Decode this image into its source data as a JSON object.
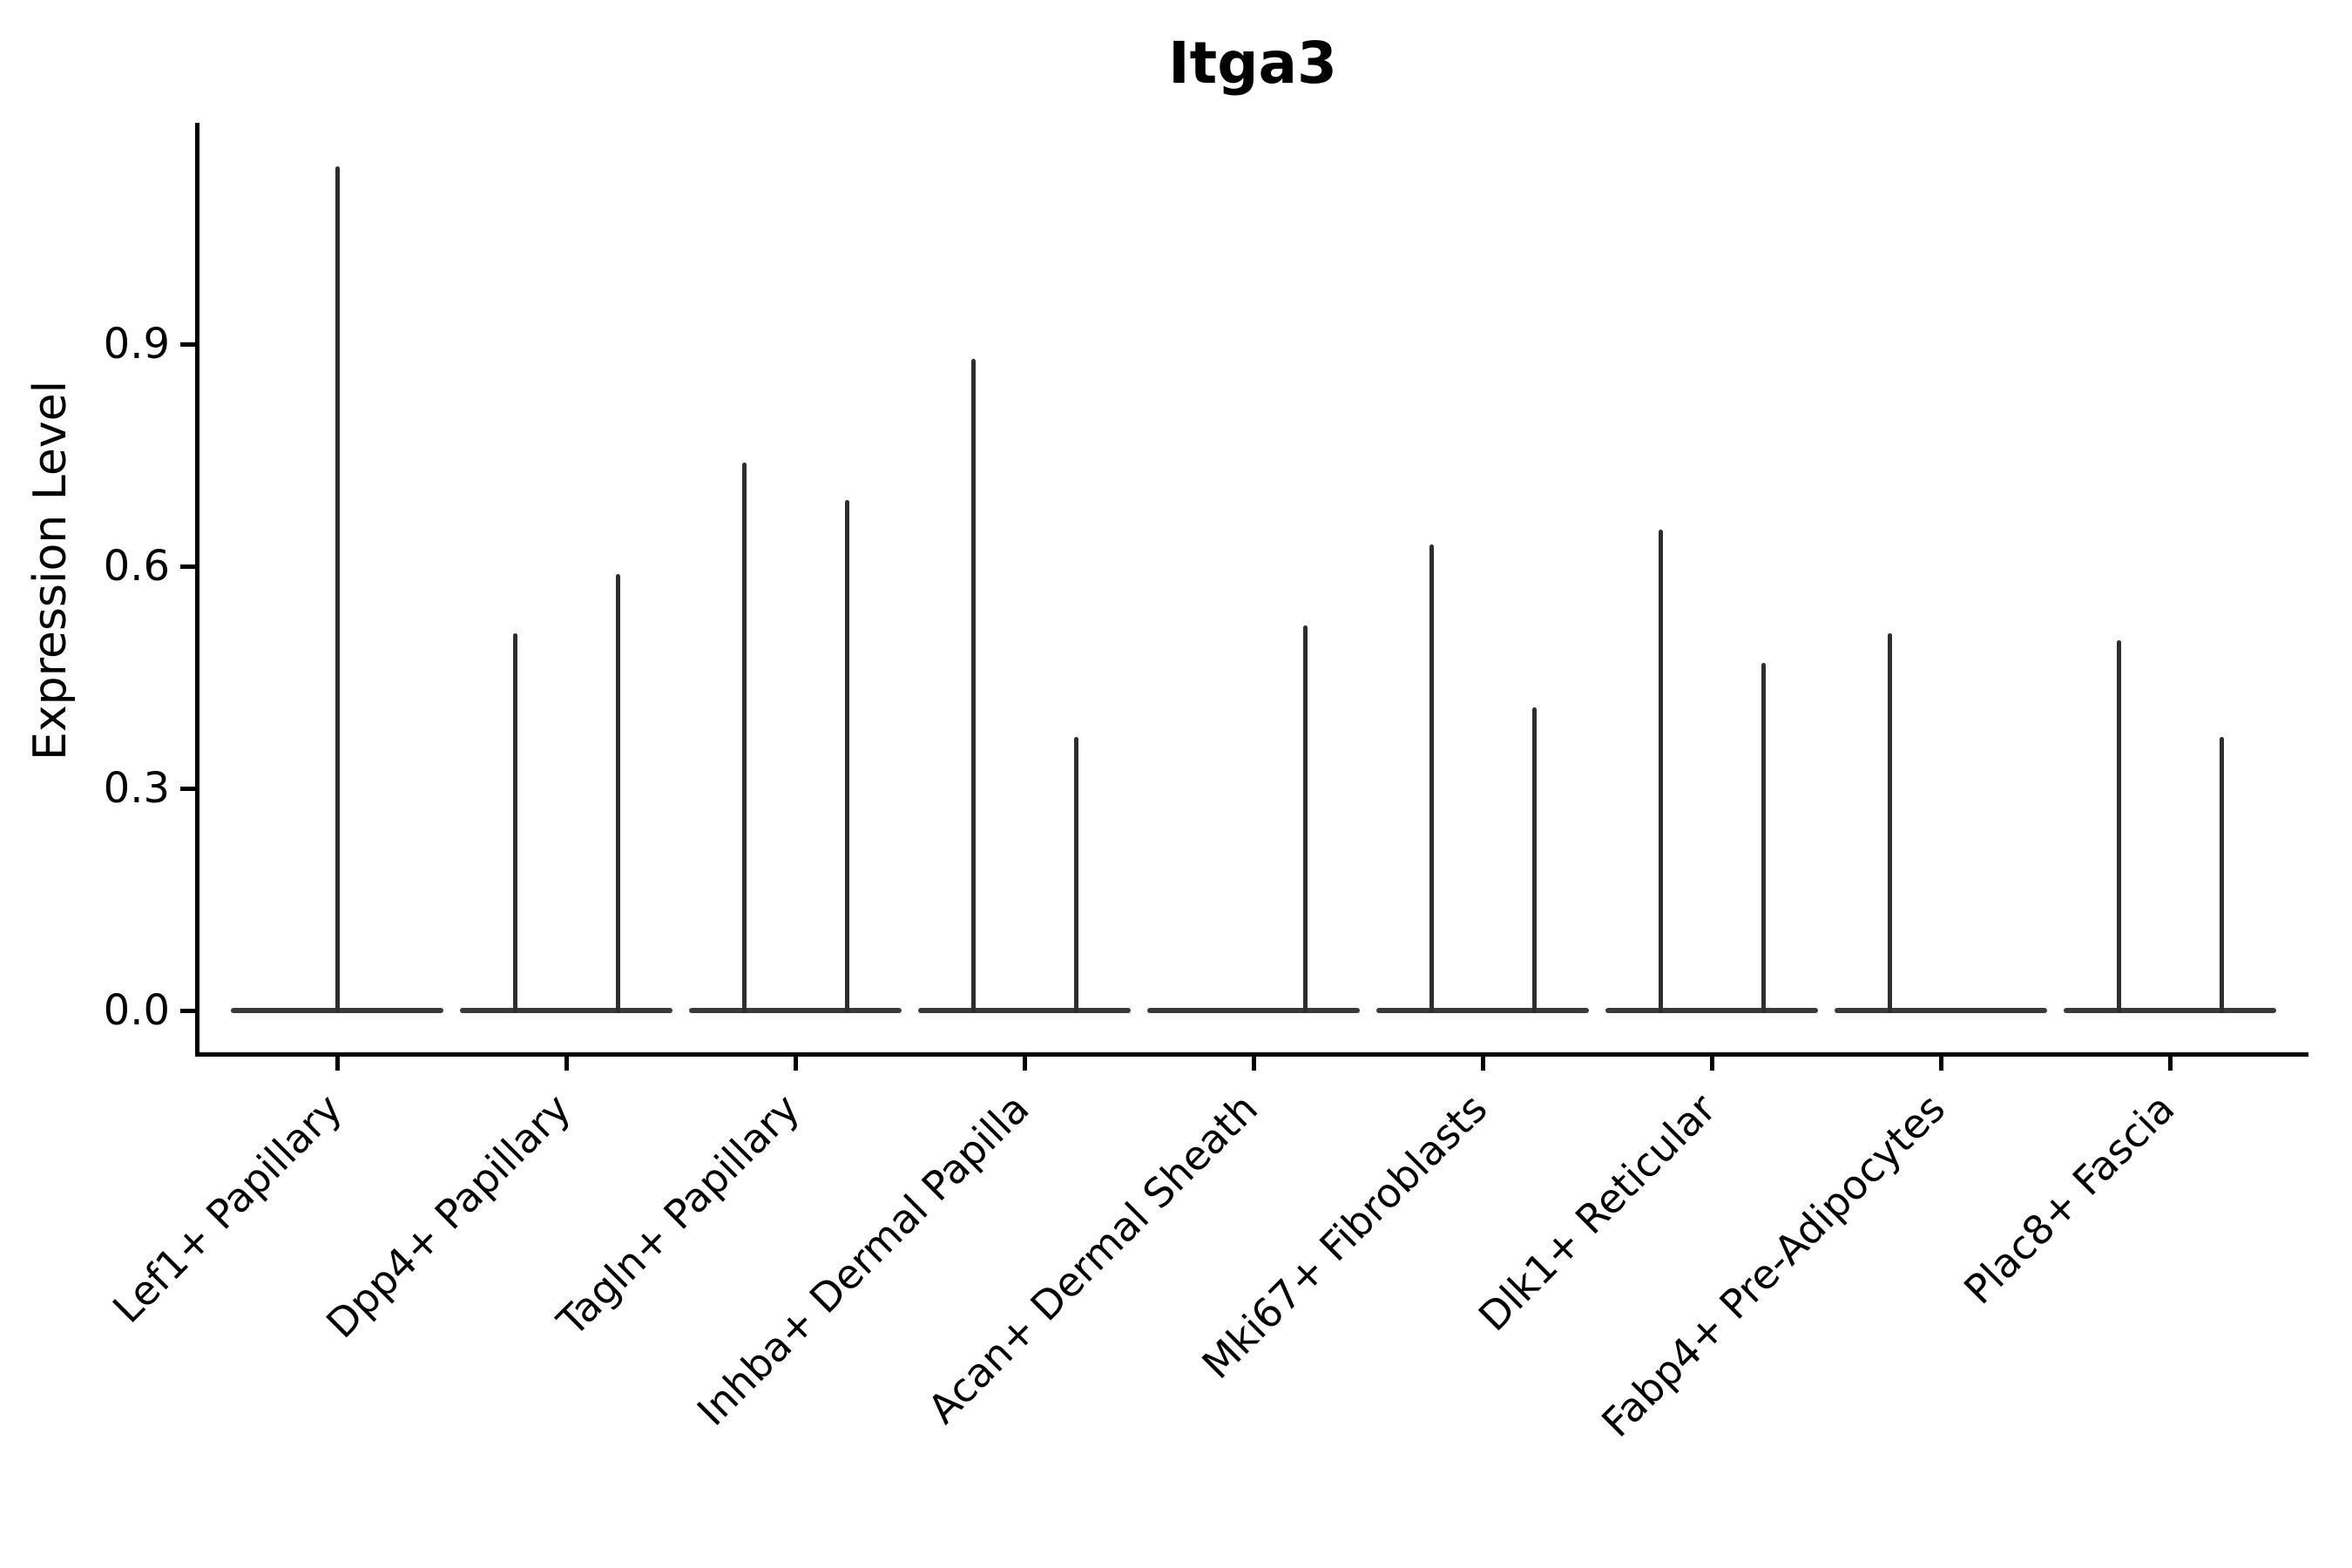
{
  "chart_data": {
    "type": "violin",
    "title": "Itga3",
    "xlabel": "",
    "ylabel": "Expression Level",
    "ylim": [
      -0.06,
      1.2
    ],
    "yticks": [
      0.0,
      0.3,
      0.6,
      0.9
    ],
    "ytick_labels": [
      "0.0",
      "0.3",
      "0.6",
      "0.9"
    ],
    "grid": false,
    "legend": "none",
    "categories": [
      "Lef1+ Papillary",
      "Dpp4+ Papillary",
      "Tagln+ Papillary",
      "Inhba+ Dermal Papilla",
      "Acan+ Dermal Sheath",
      "Mki67+ Fibroblasts",
      "Dlk1+ Reticular",
      "Fabp4+ Pre-Adipocytes",
      "Plac8+ Fascia"
    ],
    "baseline_value": 0.0,
    "violins": [
      {
        "category": "Lef1+ Papillary",
        "spikes": [
          {
            "position": "center",
            "max": 1.14
          }
        ]
      },
      {
        "category": "Dpp4+ Papillary",
        "spikes": [
          {
            "position": "left",
            "max": 0.51
          },
          {
            "position": "right",
            "max": 0.59
          }
        ]
      },
      {
        "category": "Tagln+ Papillary",
        "spikes": [
          {
            "position": "left",
            "max": 0.74
          },
          {
            "position": "right",
            "max": 0.69
          }
        ]
      },
      {
        "category": "Inhba+ Dermal Papilla",
        "spikes": [
          {
            "position": "left",
            "max": 0.88
          },
          {
            "position": "right",
            "max": 0.37
          }
        ]
      },
      {
        "category": "Acan+ Dermal Sheath",
        "spikes": [
          {
            "position": "right",
            "max": 0.52
          }
        ]
      },
      {
        "category": "Mki67+ Fibroblasts",
        "spikes": [
          {
            "position": "left",
            "max": 0.63
          },
          {
            "position": "right",
            "max": 0.41
          }
        ]
      },
      {
        "category": "Dlk1+ Reticular",
        "spikes": [
          {
            "position": "left",
            "max": 0.65
          },
          {
            "position": "right",
            "max": 0.47
          }
        ]
      },
      {
        "category": "Fabp4+ Pre-Adipocytes",
        "spikes": [
          {
            "position": "left",
            "max": 0.51
          }
        ]
      },
      {
        "category": "Plac8+ Fascia",
        "spikes": [
          {
            "position": "left",
            "max": 0.5
          },
          {
            "position": "right",
            "max": 0.37
          }
        ]
      }
    ],
    "colors": {
      "background": "#ffffff",
      "axis": "#000000",
      "text": "#000000",
      "violin_stroke": "#2e2e2e",
      "violin_base": "#3a3a3a"
    }
  }
}
